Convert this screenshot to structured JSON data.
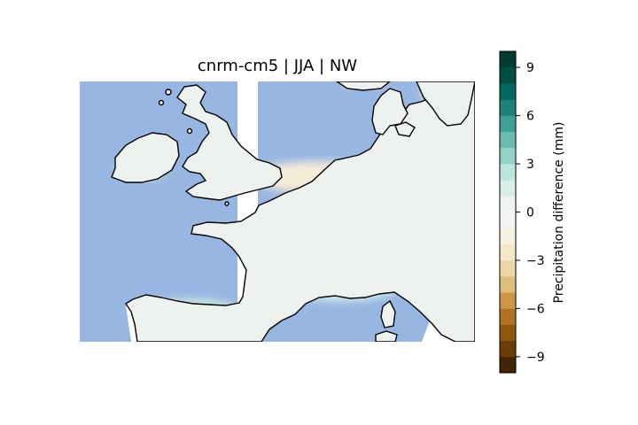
{
  "title": "cnrm-cm5 | JJA | NW",
  "colorbar": {
    "label": "Precipitation difference (mm)",
    "range": [
      -10,
      10
    ],
    "step": 1,
    "tick_values": [
      9,
      6,
      3,
      0,
      -3,
      -6,
      -9
    ],
    "tick_labels": [
      "9",
      "6",
      "3",
      "0",
      "−3",
      "−6",
      "−9"
    ],
    "colors": [
      "#402504",
      "#6b3d09",
      "#8f560f",
      "#b27224",
      "#cc9749",
      "#dfbe79",
      "#ecd8a6",
      "#f4e8c8",
      "#f6f0e0",
      "#f3f3f1",
      "#ecf5f3",
      "#d8eeea",
      "#bde4dd",
      "#93d2c6",
      "#6cbbb0",
      "#40a096",
      "#1d8379",
      "#036960",
      "#014f44",
      "#003c30"
    ]
  },
  "map": {
    "region": "NW Europe",
    "ocean_color": "#97b6e1",
    "land_colors": {
      "near_zero": "#eef2ee",
      "slight_wet": "#d6eeea",
      "wet": "#a9ddd2",
      "wetter": "#6ebcb1",
      "wettest": "#3f9f95",
      "slight_dry": "#f5ecd7",
      "dry": "#f0e0bd"
    },
    "coastline_color": "#000000"
  }
}
